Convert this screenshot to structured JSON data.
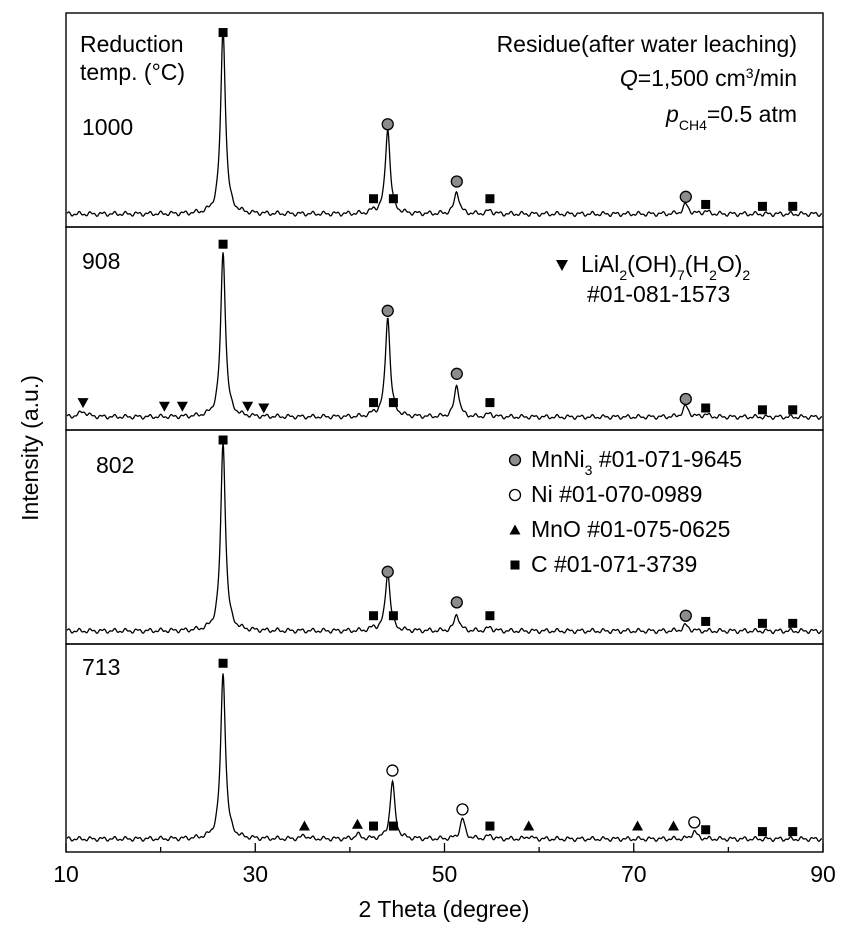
{
  "chart_data": {
    "type": "line",
    "xlabel": "2 Theta (degree)",
    "ylabel": "Intensity (a.u.)",
    "xlim": [
      10,
      90
    ],
    "x_ticks": [
      10,
      30,
      50,
      70,
      90
    ],
    "panel_title": "Reduction temp. (°C)",
    "panel_title_lines": [
      "Reduction",
      "temp. (°C)"
    ],
    "conditions": {
      "line1": "Residue(after water leaching)",
      "q_symbol": "Q",
      "q_value": "=1,500 cm",
      "q_sup": "3",
      "q_unit": "/min",
      "p_symbol": "p",
      "p_sub": "CH4",
      "p_value": "=0.5 atm"
    },
    "legend": {
      "lial": {
        "marker": "triangle-down",
        "prefix": "LiAl",
        "s1": "2",
        "mid1": "(OH)",
        "s2": "7",
        "mid2": "(H",
        "s3": "2",
        "mid3": "O)",
        "s4": "2",
        "card": "#01-081-1573"
      },
      "entries": [
        {
          "marker": "circle-gray",
          "name": "MnNi",
          "sub": "3",
          "card": " #01-071-9645"
        },
        {
          "marker": "circle-open",
          "name": "Ni",
          "sub": "",
          "card": " #01-070-0989"
        },
        {
          "marker": "triangle-up",
          "name": "MnO",
          "sub": "",
          "card": " #01-075-0625"
        },
        {
          "marker": "square",
          "name": "C",
          "sub": "",
          "card": " #01-071-3739"
        }
      ]
    },
    "series": [
      {
        "name": "1000",
        "peaks": [
          {
            "x": 26.6,
            "h": 0.97,
            "w": 0.3
          },
          {
            "x": 44.0,
            "h": 0.45,
            "w": 0.3
          },
          {
            "x": 51.3,
            "h": 0.12,
            "w": 0.3
          },
          {
            "x": 75.5,
            "h": 0.05,
            "w": 0.35
          },
          {
            "x": 54.8,
            "h": 0.02,
            "w": 0.3
          },
          {
            "x": 42.5,
            "h": 0.015,
            "w": 0.3
          },
          {
            "x": 77.6,
            "h": 0.015,
            "w": 0.3
          }
        ],
        "markers": [
          {
            "x": 26.6,
            "sym": "square",
            "yf": 0.95
          },
          {
            "x": 44.0,
            "sym": "circle-gray",
            "yf": 0.47
          },
          {
            "x": 51.3,
            "sym": "circle-gray",
            "yf": 0.17
          },
          {
            "x": 75.5,
            "sym": "circle-gray",
            "yf": 0.09
          },
          {
            "x": 42.5,
            "sym": "square",
            "yf": 0.08
          },
          {
            "x": 44.6,
            "sym": "square",
            "yf": 0.08
          },
          {
            "x": 54.8,
            "sym": "square",
            "yf": 0.08
          },
          {
            "x": 77.6,
            "sym": "square",
            "yf": 0.05
          },
          {
            "x": 83.6,
            "sym": "square",
            "yf": 0.04
          },
          {
            "x": 86.8,
            "sym": "square",
            "yf": 0.04
          }
        ]
      },
      {
        "name": "908",
        "peaks": [
          {
            "x": 26.6,
            "h": 0.92,
            "w": 0.3
          },
          {
            "x": 44.0,
            "h": 0.56,
            "w": 0.3
          },
          {
            "x": 51.3,
            "h": 0.18,
            "w": 0.3
          },
          {
            "x": 75.5,
            "h": 0.06,
            "w": 0.35
          },
          {
            "x": 11.8,
            "h": 0.03,
            "w": 0.5
          },
          {
            "x": 54.8,
            "h": 0.02,
            "w": 0.3
          },
          {
            "x": 42.5,
            "h": 0.015,
            "w": 0.3
          },
          {
            "x": 77.6,
            "h": 0.015,
            "w": 0.3
          }
        ],
        "markers": [
          {
            "x": 26.6,
            "sym": "square",
            "yf": 0.96
          },
          {
            "x": 44.0,
            "sym": "circle-gray",
            "yf": 0.59
          },
          {
            "x": 51.3,
            "sym": "circle-gray",
            "yf": 0.24
          },
          {
            "x": 75.5,
            "sym": "circle-gray",
            "yf": 0.1
          },
          {
            "x": 11.8,
            "sym": "triangle-down",
            "yf": 0.08
          },
          {
            "x": 20.4,
            "sym": "triangle-down",
            "yf": 0.06
          },
          {
            "x": 22.3,
            "sym": "triangle-down",
            "yf": 0.06
          },
          {
            "x": 29.2,
            "sym": "triangle-down",
            "yf": 0.06
          },
          {
            "x": 30.9,
            "sym": "triangle-down",
            "yf": 0.05
          },
          {
            "x": 42.5,
            "sym": "square",
            "yf": 0.08
          },
          {
            "x": 44.6,
            "sym": "square",
            "yf": 0.08
          },
          {
            "x": 54.8,
            "sym": "square",
            "yf": 0.08
          },
          {
            "x": 77.6,
            "sym": "square",
            "yf": 0.05
          },
          {
            "x": 83.6,
            "sym": "square",
            "yf": 0.04
          },
          {
            "x": 86.8,
            "sym": "square",
            "yf": 0.04
          }
        ]
      },
      {
        "name": "802",
        "peaks": [
          {
            "x": 26.6,
            "h": 0.99,
            "w": 0.3
          },
          {
            "x": 44.0,
            "h": 0.31,
            "w": 0.3
          },
          {
            "x": 51.3,
            "h": 0.09,
            "w": 0.3
          },
          {
            "x": 75.5,
            "h": 0.03,
            "w": 0.35
          },
          {
            "x": 54.8,
            "h": 0.02,
            "w": 0.3
          },
          {
            "x": 42.5,
            "h": 0.015,
            "w": 0.3
          }
        ],
        "markers": [
          {
            "x": 26.6,
            "sym": "square",
            "yf": 1.0
          },
          {
            "x": 44.0,
            "sym": "circle-gray",
            "yf": 0.31
          },
          {
            "x": 51.3,
            "sym": "circle-gray",
            "yf": 0.15
          },
          {
            "x": 75.5,
            "sym": "circle-gray",
            "yf": 0.08
          },
          {
            "x": 42.5,
            "sym": "square",
            "yf": 0.08
          },
          {
            "x": 44.6,
            "sym": "square",
            "yf": 0.08
          },
          {
            "x": 54.8,
            "sym": "square",
            "yf": 0.08
          },
          {
            "x": 77.6,
            "sym": "square",
            "yf": 0.05
          },
          {
            "x": 83.6,
            "sym": "square",
            "yf": 0.04
          },
          {
            "x": 86.8,
            "sym": "square",
            "yf": 0.04
          }
        ]
      },
      {
        "name": "713",
        "peaks": [
          {
            "x": 26.6,
            "h": 0.9,
            "w": 0.3
          },
          {
            "x": 44.5,
            "h": 0.31,
            "w": 0.3
          },
          {
            "x": 51.9,
            "h": 0.11,
            "w": 0.3
          },
          {
            "x": 76.4,
            "h": 0.04,
            "w": 0.35
          },
          {
            "x": 35.2,
            "h": 0.02,
            "w": 0.3
          },
          {
            "x": 40.8,
            "h": 0.025,
            "w": 0.3
          },
          {
            "x": 54.8,
            "h": 0.02,
            "w": 0.3
          },
          {
            "x": 58.9,
            "h": 0.015,
            "w": 0.3
          }
        ],
        "markers": [
          {
            "x": 26.6,
            "sym": "square",
            "yf": 0.95
          },
          {
            "x": 44.5,
            "sym": "circle-open",
            "yf": 0.37
          },
          {
            "x": 51.9,
            "sym": "circle-open",
            "yf": 0.16
          },
          {
            "x": 76.4,
            "sym": "circle-open",
            "yf": 0.09
          },
          {
            "x": 35.2,
            "sym": "triangle-up",
            "yf": 0.07
          },
          {
            "x": 40.8,
            "sym": "triangle-up",
            "yf": 0.08
          },
          {
            "x": 42.5,
            "sym": "square",
            "yf": 0.07
          },
          {
            "x": 44.6,
            "sym": "square",
            "yf": 0.07
          },
          {
            "x": 54.8,
            "sym": "square",
            "yf": 0.07
          },
          {
            "x": 58.9,
            "sym": "triangle-up",
            "yf": 0.07
          },
          {
            "x": 70.4,
            "sym": "triangle-up",
            "yf": 0.07
          },
          {
            "x": 74.2,
            "sym": "triangle-up",
            "yf": 0.07
          },
          {
            "x": 77.6,
            "sym": "square",
            "yf": 0.05
          },
          {
            "x": 83.6,
            "sym": "square",
            "yf": 0.04
          },
          {
            "x": 86.8,
            "sym": "square",
            "yf": 0.04
          }
        ]
      }
    ]
  }
}
